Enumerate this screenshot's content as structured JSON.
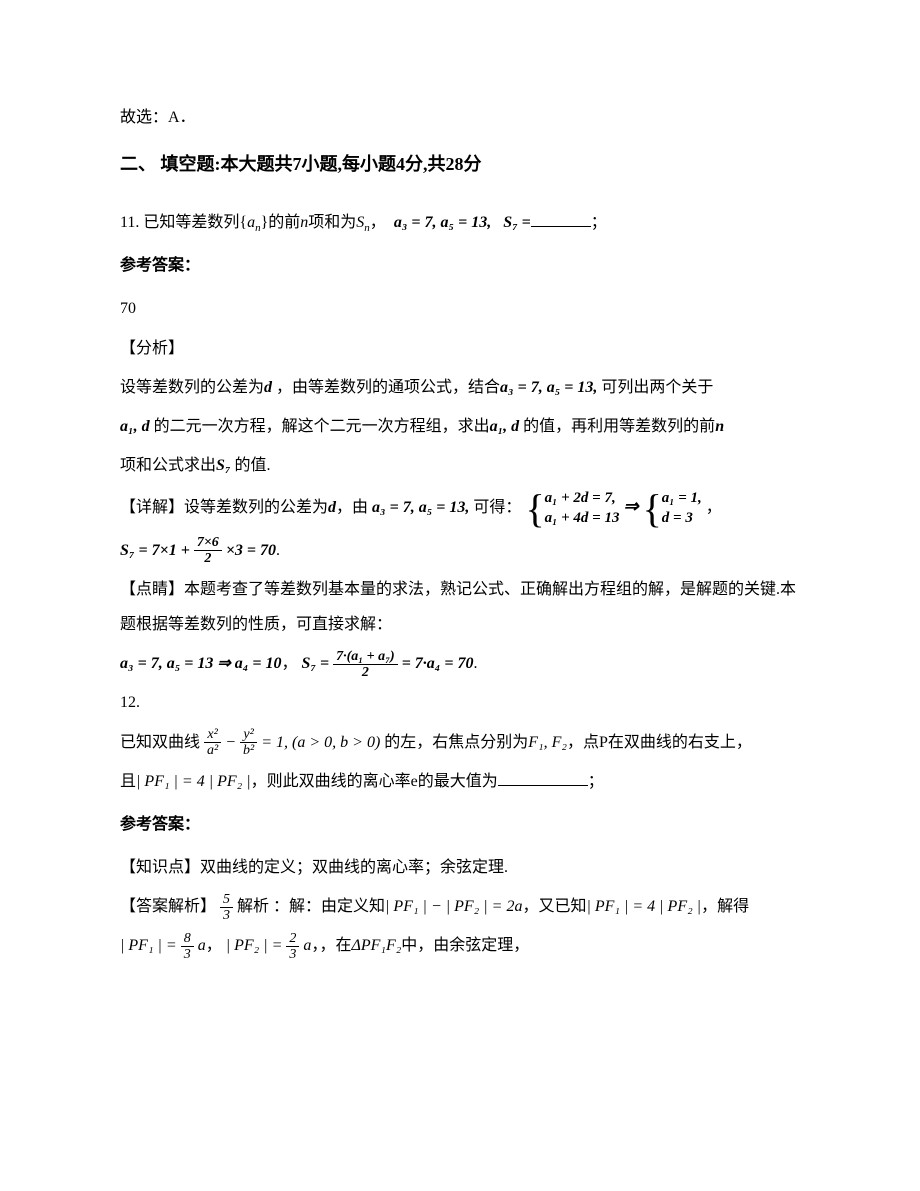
{
  "top_line": "故选：A．",
  "section2": {
    "title": "二、 填空题:本大题共7小题,每小题4分,共28分"
  },
  "q11": {
    "stem_prefix": "11. 已知等差数列{",
    "stem_a": "a",
    "stem_sub": "n",
    "stem_mid": "}的前",
    "stem_n": "n",
    "stem_after": "项和为",
    "stem_S": "S",
    "stem_Ssub": "n",
    "stem_comma": "，",
    "cond": "a₃ = 7, a₅ = 13,",
    "s7eq": "S₇ =",
    "tail": "；",
    "answer_label": "参考答案：",
    "answer_value": "70",
    "analysis_label": "【分析】",
    "analysis_p1a": "设等差数列的公差为",
    "analysis_d": "d",
    "analysis_p1b": "，由等差数列的通项公式，结合",
    "analysis_cond": "a₃ = 7, a₅ = 13,",
    "analysis_p1c": "可列出两个关于",
    "analysis_p2a_vars": "a₁, d",
    "analysis_p2a": "的二元一次方程，解这个二元一次方程组，求出",
    "analysis_p2b_vars": "a₁, d",
    "analysis_p2b": "的值，再利用等差数列的前",
    "analysis_n": "n",
    "analysis_p3a": "项和公式求出",
    "analysis_S7": "S₇",
    "analysis_p3b": "的值.",
    "detail_label": "【详解】设等差数列的公差为",
    "detail_d": "d",
    "detail_mid": "，由",
    "detail_cond": "a₃ = 7, a₅ = 13,",
    "detail_get": "可得：",
    "sys1_line1": "a₁ + 2d = 7,",
    "sys1_line2": "a₁ + 4d = 13",
    "arrow": "⇒",
    "sys2_line1": "a₁ = 1,",
    "sys2_line2": "d = 3",
    "detail_comma": "，",
    "s7calc_pre": "S₇ = 7×1 +",
    "s7calc_num": "7×6",
    "s7calc_den": "2",
    "s7calc_post": "×3 = 70",
    "s7calc_period": ".",
    "insight_label": "【点睛】本题考查了等差数列基本量的求法，熟记公式、正确解出方程组的解，是解题的关键.本题根据等差数列的性质，可直接求解：",
    "insight_eq1": "a₃ = 7, a₅ = 13 ⇒ a₄ = 10",
    "insight_mid": "，",
    "insight_eq2_pre": "S₇ =",
    "insight_eq2_num": "7·(a₁ + a₇)",
    "insight_eq2_den": "2",
    "insight_eq2_post": "= 7·a₄ = 70",
    "insight_period": "."
  },
  "q12": {
    "number": "12.",
    "stem_pre": "已知双曲线",
    "eq_num1": "x²",
    "eq_den1": "a²",
    "eq_minus": "−",
    "eq_num2": "y²",
    "eq_den2": "b²",
    "eq_post": "= 1, (a > 0, b > 0)",
    "stem_mid": "的左，右焦点分别为",
    "foci": "F₁, F₂",
    "stem_after": "，点P在双曲线的右支上，",
    "line2_pre": "且",
    "pf_eq": "| PF₁ | = 4 | PF₂ |",
    "line2_mid": "，则此双曲线的离心率e的最大值为",
    "line2_tail": "；",
    "answer_label": "参考答案：",
    "knowledge": "【知识点】双曲线的定义；双曲线的离心率；余弦定理.",
    "ans_label": "【答案解析】",
    "ans_num": "5",
    "ans_den": "3",
    "ans_text": "解析 ：解：由定义知",
    "def_eq": "| PF₁ | − | PF₂ | = 2a",
    "ans_mid": "，又已知",
    "given_eq": "| PF₁ | = 4 | PF₂ |",
    "ans_solve": "，解得",
    "pf1_lhs": "| PF₁ | =",
    "pf1_num": "8",
    "pf1_den": "3",
    "pf1_a": "a",
    "sep": "，",
    "pf2_lhs": "| PF₂ | =",
    "pf2_num": "2",
    "pf2_den": "3",
    "pf2_a": "a",
    "in_text": "，在",
    "triangle": "ΔPF₁F₂",
    "cos_text": "中，由余弦定理，"
  }
}
